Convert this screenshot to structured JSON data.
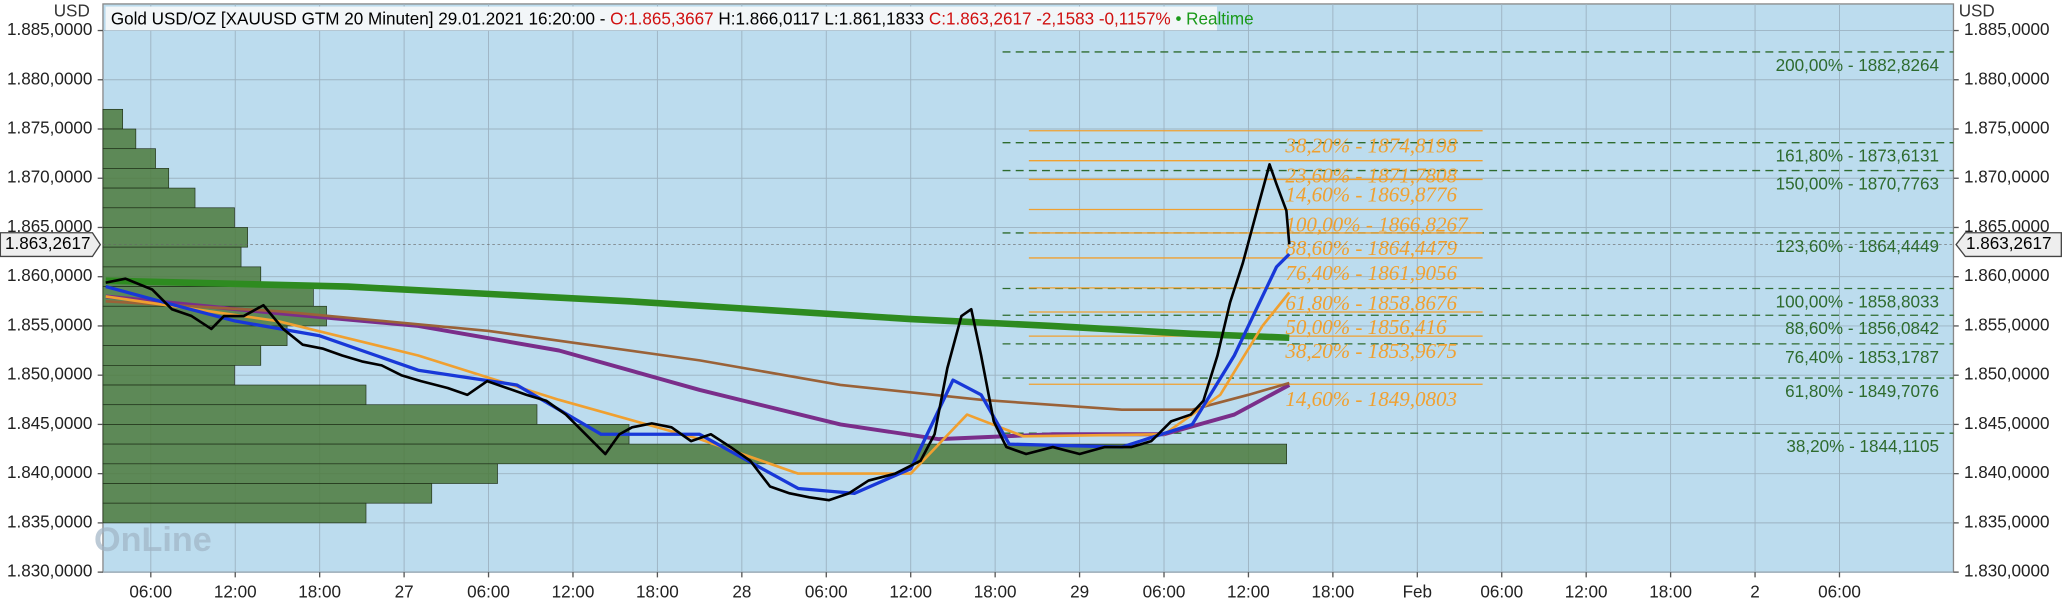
{
  "chart_data": {
    "type": "line",
    "header": [
      {
        "text": "Gold USD/OZ [XAUUSD GTM 20 Minuten] 29.01.2021 16:20:00 - ",
        "color": "#000000"
      },
      {
        "text": "O:1.865,3667",
        "color": "#d01010"
      },
      {
        "text": " H:1.866,0117 L:1.861,1833 ",
        "color": "#000000"
      },
      {
        "text": "C:1.863,2617 -2,1583 -0,1157%",
        "color": "#d01010"
      },
      {
        "text": " • Realtime",
        "color": "#1a9a1a"
      }
    ],
    "y_unit": "USD",
    "watermark": "OnLine",
    "background": "#bcdcee",
    "grid": true,
    "xlim": [
      2.6,
      134.1
    ],
    "xticks": [
      {
        "value": 6,
        "label": "06:00"
      },
      {
        "value": 12,
        "label": "12:00"
      },
      {
        "value": 18,
        "label": "18:00"
      },
      {
        "value": 24,
        "label": "27"
      },
      {
        "value": 30,
        "label": "06:00"
      },
      {
        "value": 36,
        "label": "12:00"
      },
      {
        "value": 42,
        "label": "18:00"
      },
      {
        "value": 48,
        "label": "28"
      },
      {
        "value": 54,
        "label": "06:00"
      },
      {
        "value": 60,
        "label": "12:00"
      },
      {
        "value": 66,
        "label": "18:00"
      },
      {
        "value": 72,
        "label": "29"
      },
      {
        "value": 78,
        "label": "06:00"
      },
      {
        "value": 84,
        "label": "12:00"
      },
      {
        "value": 90,
        "label": "18:00"
      },
      {
        "value": 96,
        "label": "Feb"
      },
      {
        "value": 102,
        "label": "06:00"
      },
      {
        "value": 108,
        "label": "12:00"
      },
      {
        "value": 114,
        "label": "18:00"
      },
      {
        "value": 120,
        "label": "2"
      },
      {
        "value": 126,
        "label": "06:00"
      }
    ],
    "ylim": [
      1830,
      1887.7
    ],
    "yticks": [
      {
        "value": 1830,
        "label": "1.830,0000"
      },
      {
        "value": 1835,
        "label": "1.835,0000"
      },
      {
        "value": 1840,
        "label": "1.840,0000"
      },
      {
        "value": 1845,
        "label": "1.845,0000"
      },
      {
        "value": 1850,
        "label": "1.850,0000"
      },
      {
        "value": 1855,
        "label": "1.855,0000"
      },
      {
        "value": 1860,
        "label": "1.860,0000"
      },
      {
        "value": 1865,
        "label": "1.865,0000"
      },
      {
        "value": 1870,
        "label": "1.870,0000"
      },
      {
        "value": 1875,
        "label": "1.875,0000"
      },
      {
        "value": 1880,
        "label": "1.880,0000"
      },
      {
        "value": 1885,
        "label": "1.885,0000"
      }
    ],
    "last_price": {
      "value": 1863.2617,
      "label": "1.863,2617"
    },
    "volume_profile": {
      "color": "#4c7a3c",
      "prices": [
        1876,
        1874,
        1872,
        1870,
        1868,
        1866,
        1864,
        1862,
        1860,
        1858,
        1856,
        1854,
        1852,
        1850,
        1848,
        1846,
        1844,
        1842,
        1840,
        1838,
        1836
      ],
      "values": [
        15,
        25,
        40,
        50,
        70,
        100,
        110,
        105,
        120,
        160,
        170,
        140,
        120,
        100,
        200,
        330,
        400,
        900,
        300,
        250,
        200
      ]
    },
    "series": [
      {
        "color": "#2e8b20",
        "width": 5,
        "x": [
          2.8,
          20,
          40,
          60,
          70,
          80,
          86.9
        ],
        "values": [
          1859.6,
          1859.0,
          1857.5,
          1855.7,
          1855.0,
          1854.2,
          1853.8
        ]
      },
      {
        "color": "#7a2e8a",
        "width": 3,
        "x": [
          2.8,
          15,
          25,
          35,
          45,
          55,
          62,
          70,
          78,
          83,
          86.9
        ],
        "values": [
          1858,
          1856.3,
          1855,
          1852.5,
          1848.5,
          1845,
          1843.5,
          1844,
          1844,
          1846,
          1849
        ]
      },
      {
        "color": "#9a6238",
        "width": 2,
        "x": [
          2.8,
          15,
          30,
          45,
          55,
          65,
          75,
          80,
          84,
          86.9
        ],
        "values": [
          1857.5,
          1856.5,
          1854.5,
          1851.5,
          1849,
          1847.5,
          1846.5,
          1846.5,
          1848,
          1849.2
        ]
      },
      {
        "color": "#f0a030",
        "width": 2,
        "x": [
          2.8,
          15,
          25,
          35,
          45,
          52,
          60,
          64,
          68,
          78,
          82,
          85,
          86.9
        ],
        "values": [
          1858,
          1855.5,
          1852,
          1847.5,
          1843.5,
          1840,
          1840,
          1846,
          1843.8,
          1844,
          1848,
          1855,
          1858.4
        ]
      },
      {
        "color": "#1838d8",
        "width": 2.5,
        "x": [
          2.8,
          8,
          12,
          18,
          25,
          32,
          38,
          45,
          52,
          56,
          60,
          63,
          65,
          67,
          75,
          80,
          83,
          86,
          86.9
        ],
        "values": [
          1859,
          1857,
          1855.5,
          1854,
          1850.5,
          1849,
          1844,
          1844,
          1838.5,
          1838,
          1840.5,
          1849.5,
          1848,
          1843,
          1842.7,
          1845,
          1852,
          1861,
          1862.3
        ]
      },
      {
        "color": "#000000",
        "width": 2,
        "x": [
          2.8,
          4.2,
          6.1,
          7.5,
          8.9,
          10.3,
          11.2,
          12.6,
          14.0,
          15.4,
          16.8,
          18.2,
          19.6,
          21.0,
          22.4,
          23.8,
          25.2,
          27.1,
          28.5,
          29.9,
          31.3,
          32.7,
          34.1,
          35.5,
          36.9,
          38.3,
          39.3,
          40.2,
          41.6,
          43.0,
          44.4,
          45.8,
          47.2,
          48.6,
          50.0,
          51.4,
          52.8,
          54.2,
          55.6,
          57.0,
          58.9,
          60.7,
          61.7,
          62.6,
          63.6,
          64.3,
          65.0,
          65.9,
          66.8,
          68.2,
          70.1,
          72.0,
          73.8,
          75.7,
          77.1,
          78.5,
          79.9,
          80.8,
          81.8,
          82.7,
          83.6,
          84.6,
          85.5,
          86.0,
          86.7,
          86.9
        ],
        "values": [
          1859.4,
          1859.8,
          1858.7,
          1856.7,
          1856.0,
          1854.7,
          1856.0,
          1856.0,
          1857.1,
          1854.7,
          1853.1,
          1852.7,
          1852.0,
          1851.4,
          1851.0,
          1850.0,
          1849.4,
          1848.7,
          1848.0,
          1849.4,
          1848.7,
          1848.0,
          1847.4,
          1846.0,
          1844.0,
          1842.0,
          1844.0,
          1844.7,
          1845.1,
          1844.7,
          1843.3,
          1844.0,
          1842.7,
          1841.3,
          1838.7,
          1838.0,
          1837.6,
          1837.3,
          1838.0,
          1839.3,
          1840.0,
          1841.3,
          1844.0,
          1850.7,
          1856.0,
          1856.7,
          1852.0,
          1845.3,
          1842.7,
          1842.0,
          1842.7,
          1842.0,
          1842.7,
          1842.7,
          1843.3,
          1845.3,
          1846.0,
          1847.4,
          1852.0,
          1857.4,
          1861.4,
          1866.7,
          1871.4,
          1869.4,
          1866.7,
          1863.3
        ]
      }
    ],
    "fib_right": {
      "color": "#2e6b2e",
      "levels": [
        {
          "value": 1882.8264,
          "label": "200,00% - 1882,8264"
        },
        {
          "value": 1873.6131,
          "label": "161,80% - 1873,6131"
        },
        {
          "value": 1870.7763,
          "label": "150,00% - 1870,7763"
        },
        {
          "value": 1864.4449,
          "label": "123,60% - 1864,4449"
        },
        {
          "value": 1858.8033,
          "label": "100,00% - 1858,8033"
        },
        {
          "value": 1856.0842,
          "label": "88,60% - 1856,0842"
        },
        {
          "value": 1853.1787,
          "label": "76,40% - 1853,1787"
        },
        {
          "value": 1849.7076,
          "label": "61,80% - 1849,7076"
        },
        {
          "value": 1844.1105,
          "label": "38,20% - 1844,1105"
        }
      ]
    },
    "fib_left": {
      "color": "#f0a030",
      "levels": [
        {
          "value": 1874.8198,
          "label": "38,20% - 1874,8198"
        },
        {
          "value": 1871.7808,
          "label": "23,60% - 1871,7808"
        },
        {
          "value": 1869.8776,
          "label": "14,60% - 1869,8776"
        },
        {
          "value": 1866.8267,
          "label": "100,00% - 1866,8267"
        },
        {
          "value": 1864.4479,
          "label": "88,60% - 1864,4479"
        },
        {
          "value": 1861.9056,
          "label": "76,40% - 1861,9056"
        },
        {
          "value": 1858.8676,
          "label": "61,80% - 1858,8676"
        },
        {
          "value": 1856.416,
          "label": "50,00% - 1856,416"
        },
        {
          "value": 1853.9675,
          "label": "38,20% - 1853,9675"
        },
        {
          "value": 1849.0803,
          "label": "14,60% - 1849,0803"
        }
      ]
    }
  }
}
